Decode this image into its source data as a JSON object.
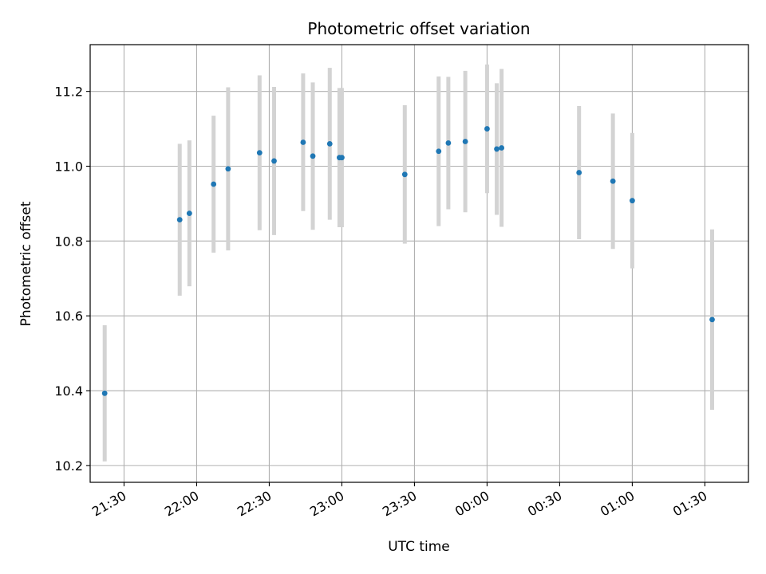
{
  "chart_data": {
    "type": "scatter",
    "title": "Photometric offset variation",
    "xlabel": "UTC time",
    "ylabel": "Photometric offset",
    "grid": true,
    "ylim": [
      10.155,
      11.325
    ],
    "xlim": [
      "21:16",
      "01:48"
    ],
    "x_tick_labels": [
      "21:30",
      "22:00",
      "22:30",
      "23:00",
      "23:30",
      "00:00",
      "00:30",
      "01:00",
      "01:30"
    ],
    "y_tick_labels": [
      "10.2",
      "10.4",
      "10.6",
      "10.8",
      "11.0",
      "11.2"
    ],
    "y_tick_values": [
      10.2,
      10.4,
      10.6,
      10.8,
      11.0,
      11.2
    ],
    "point_color": "#1f77b4",
    "errorbar_color": "#d3d3d3",
    "points": [
      {
        "x": "21:22",
        "y": 10.393,
        "yerr": 0.182
      },
      {
        "x": "21:53",
        "y": 10.857,
        "yerr": 0.203
      },
      {
        "x": "21:57",
        "y": 10.874,
        "yerr": 0.195
      },
      {
        "x": "22:07",
        "y": 10.952,
        "yerr": 0.183
      },
      {
        "x": "22:13",
        "y": 10.993,
        "yerr": 0.218
      },
      {
        "x": "22:26",
        "y": 11.036,
        "yerr": 0.207
      },
      {
        "x": "22:32",
        "y": 11.014,
        "yerr": 0.198
      },
      {
        "x": "22:44",
        "y": 11.064,
        "yerr": 0.184
      },
      {
        "x": "22:48",
        "y": 11.027,
        "yerr": 0.197
      },
      {
        "x": "22:55",
        "y": 11.06,
        "yerr": 0.203
      },
      {
        "x": "22:59",
        "y": 11.023,
        "yerr": 0.186
      },
      {
        "x": "23:00",
        "y": 11.023,
        "yerr": 0.186
      },
      {
        "x": "23:26",
        "y": 10.978,
        "yerr": 0.185
      },
      {
        "x": "23:40",
        "y": 11.04,
        "yerr": 0.2
      },
      {
        "x": "23:44",
        "y": 11.062,
        "yerr": 0.177
      },
      {
        "x": "23:51",
        "y": 11.066,
        "yerr": 0.189
      },
      {
        "x": "00:00",
        "y": 11.1,
        "yerr": 0.172
      },
      {
        "x": "00:04",
        "y": 11.046,
        "yerr": 0.176
      },
      {
        "x": "00:06",
        "y": 11.049,
        "yerr": 0.211
      },
      {
        "x": "00:38",
        "y": 10.983,
        "yerr": 0.178
      },
      {
        "x": "00:52",
        "y": 10.96,
        "yerr": 0.181
      },
      {
        "x": "01:00",
        "y": 10.908,
        "yerr": 0.181
      },
      {
        "x": "01:33",
        "y": 10.59,
        "yerr": 0.241
      }
    ]
  }
}
